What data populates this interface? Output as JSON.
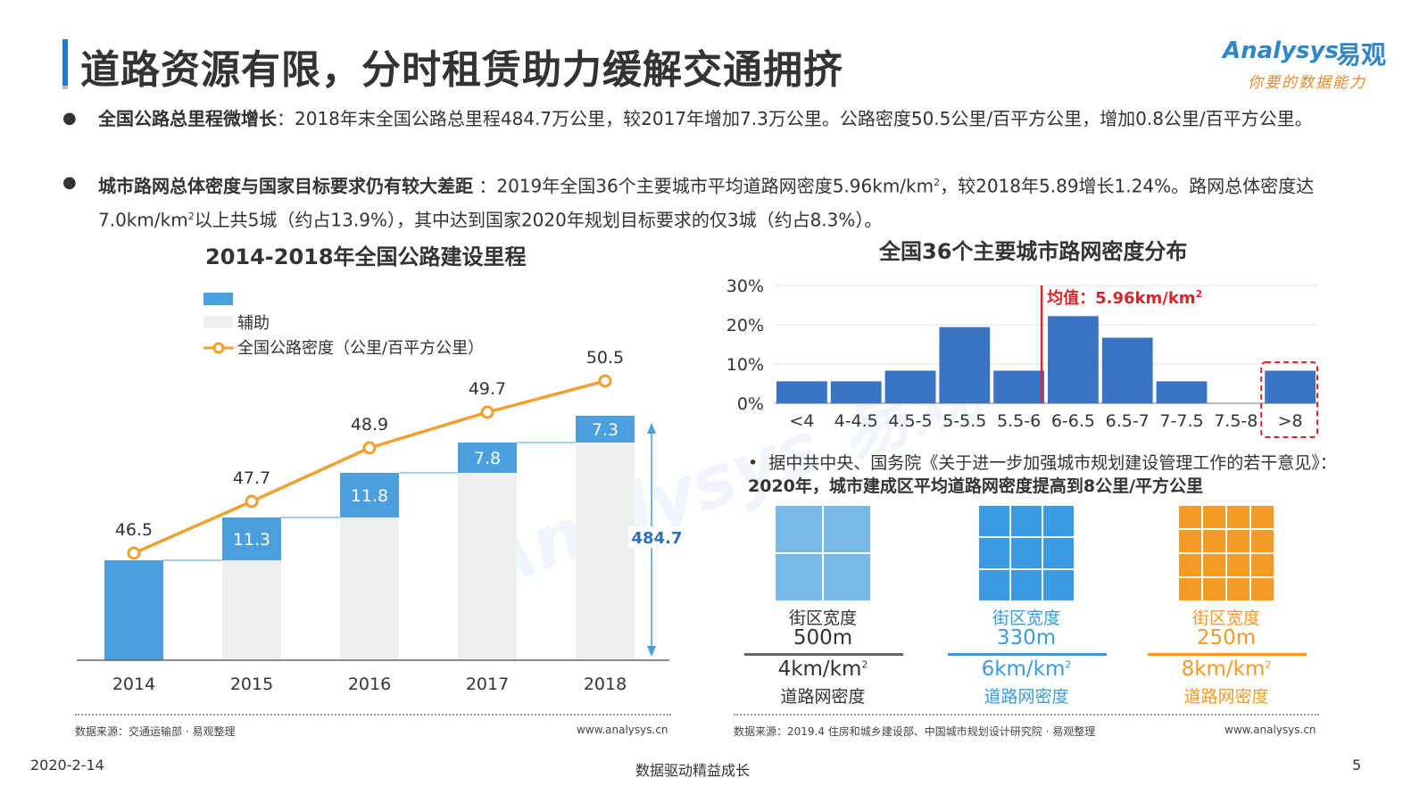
{
  "header": {
    "title": "道路资源有限，分时租赁助力缓解交通拥挤",
    "logo_en": "Analysys",
    "logo_cn": "易观",
    "logo_slogan": "你要的数据能力"
  },
  "bullets": [
    {
      "bold": "全国公路总里程微增长",
      "text": "：2018年末全国公路总里程484.7万公里，较2017年增加7.3万公里。公路密度50.5公里/百平方公里，增加0.8公里/百平方公里。"
    },
    {
      "bold": "城市路网总体密度与国家目标要求仍有较大差距",
      "text_a": " ：2019年全国36个主要城市平均道路网密度5.96km/km",
      "text_b": "，较2018年5.89增长1.24%。路网总体密度达7.0km/km",
      "text_c": "以上共5城（约占13.9%），其中达到国家2020年规划目标要求的仅3城（约占8.3%）。",
      "sup": "2"
    }
  ],
  "chart_data": [
    {
      "type": "bar",
      "title": "2014-2018年全国公路建设里程",
      "categories": [
        "2014",
        "2015",
        "2016",
        "2017",
        "2018"
      ],
      "series": [
        {
          "name": "",
          "values": [
            null,
            11.3,
            11.8,
            7.8,
            7.3
          ],
          "color": "#4a9fdc"
        },
        {
          "name": "辅助",
          "values": [
            null,
            446.5,
            457.8,
            469.6,
            477.4
          ],
          "color": "#efefef"
        },
        {
          "name": "全国公路密度（公里/百平方公里）",
          "type": "line",
          "values": [
            46.5,
            47.7,
            48.9,
            49.7,
            50.5
          ],
          "color": "#f0a030"
        }
      ],
      "total_label": "484.7"
    },
    {
      "type": "bar",
      "title": "全国36个主要城市路网密度分布",
      "categories": [
        "<4",
        "4-4.5",
        "4.5-5",
        "5-5.5",
        "5.5-6",
        "6-6.5",
        "6.5-7",
        "7-7.5",
        "7.5-8",
        ">8"
      ],
      "values": [
        5.6,
        5.6,
        8.3,
        19.4,
        8.3,
        22.2,
        16.7,
        5.6,
        0,
        8.3
      ],
      "yticks": [
        "0%",
        "10%",
        "20%",
        "30%"
      ],
      "ylim": [
        0,
        30
      ],
      "mean_label": "均值：5.96km/km",
      "mean_sup": "2",
      "mean_value": 5.96,
      "color": "#3b73c4"
    }
  ],
  "note": {
    "prefix": "据中共中央、国务院《关于进一步加强城市规划建设管理工作的若干意见》：",
    "bold": "2020年，城市建成区平均道路网密度提高到8公里/平方公里"
  },
  "grids": [
    {
      "label": "街区宽度",
      "width": "500m",
      "density": "4km/km",
      "sup": "2",
      "density_label": "道路网密度",
      "color": "#7ab8e6",
      "label_color": "#333333",
      "cells": 2
    },
    {
      "label": "街区宽度",
      "width": "330m",
      "density": "6km/km",
      "sup": "2",
      "density_label": "道路网密度",
      "color": "#3a9be0",
      "label_color": "#3a9be0",
      "cells": 3
    },
    {
      "label": "街区宽度",
      "width": "250m",
      "density": "8km/km",
      "sup": "2",
      "density_label": "道路网密度",
      "color": "#f59a25",
      "label_color": "#f59a25",
      "cells": 4
    }
  ],
  "sources": {
    "left": "数据来源：交通运输部 · 易观整理",
    "left_url": "www.analysys.cn",
    "right": "数据来源：2019.4 住房和城乡建设部、中国城市规划设计研究院 · 易观整理",
    "right_url": "www.analysys.cn"
  },
  "footer": {
    "date": "2020-2-14",
    "slogan": "数据驱动精益成长",
    "page": "5"
  }
}
